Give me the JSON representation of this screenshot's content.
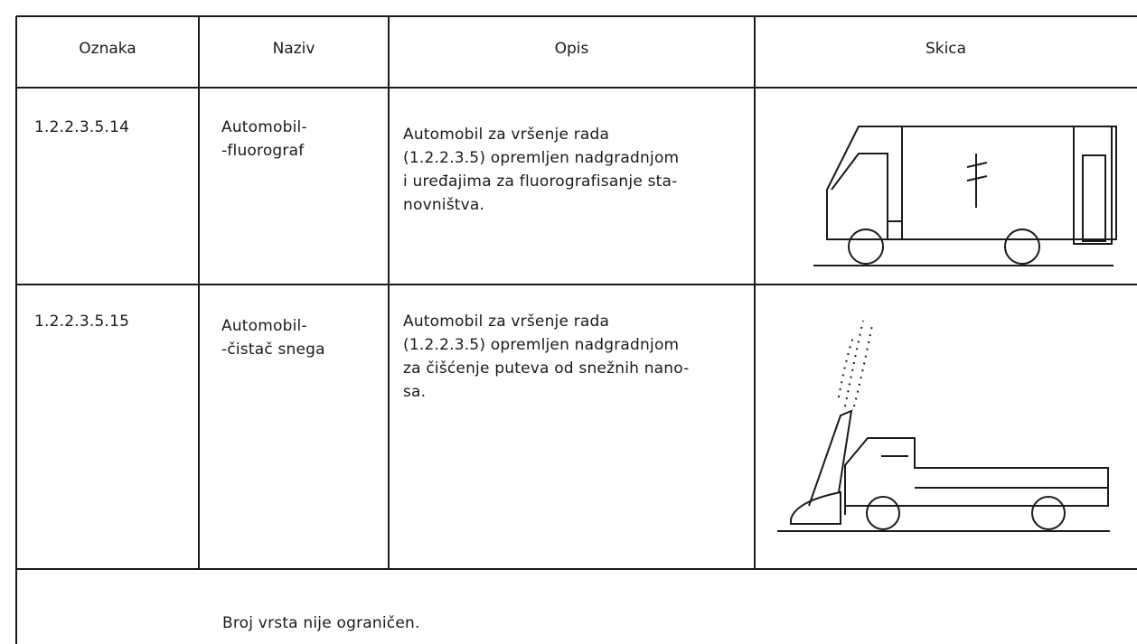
{
  "header": [
    "Oznaka",
    "Naziv",
    "Opis",
    "Skica"
  ],
  "rows": [
    {
      "code": "1.2.2.3.5.14",
      "name": [
        "Automobil-",
        "-fluorograf"
      ],
      "description": [
        "Automobil za vršenje rada",
        "(1.2.2.3.5) opremljen nadgradnjom",
        "i uređajima za fluorografisanje sta-",
        "novništva."
      ]
    },
    {
      "code": "1.2.2.3.5.15",
      "name": [
        "Automobil-",
        "-čistač snega"
      ],
      "description": [
        "Automobil za vršenje rada",
        "(1.2.2.3.5) opremljen nadgradnjom",
        "za čišćenje puteva od snežnih nano-",
        "sa."
      ]
    }
  ],
  "footer": "Broj vrsta nije ograničen."
}
